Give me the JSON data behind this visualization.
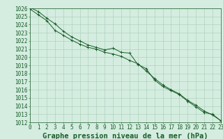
{
  "title": "Graphe pression niveau de la mer (hPa)",
  "background_color": "#d4ede0",
  "grid_color": "#a8ccb4",
  "line_color": "#1a5c28",
  "x_values": [
    0,
    1,
    2,
    3,
    4,
    5,
    6,
    7,
    8,
    9,
    10,
    11,
    12,
    13,
    14,
    15,
    16,
    17,
    18,
    19,
    20,
    21,
    22,
    23
  ],
  "y_series1": [
    1026.1,
    1025.6,
    1024.8,
    1024.1,
    1023.2,
    1022.5,
    1022.0,
    1021.5,
    1021.2,
    1020.9,
    1021.1,
    1020.6,
    1020.5,
    1019.1,
    1018.6,
    1017.2,
    1016.4,
    1015.9,
    1015.4,
    1014.6,
    1013.9,
    1013.2,
    1013.0,
    1012.2
  ],
  "y_series2": [
    1025.9,
    1025.2,
    1024.5,
    1023.3,
    1022.7,
    1022.1,
    1021.6,
    1021.2,
    1021.0,
    1020.6,
    1020.4,
    1020.1,
    1019.6,
    1019.2,
    1018.3,
    1017.4,
    1016.6,
    1016.0,
    1015.5,
    1014.7,
    1014.1,
    1013.4,
    1012.9,
    1012.2
  ],
  "ylim_min": 1012,
  "ylim_max": 1026,
  "ytick_step": 1,
  "xlim_min": 0,
  "xlim_max": 23,
  "title_fontsize": 7.5,
  "tick_fontsize": 5.5
}
